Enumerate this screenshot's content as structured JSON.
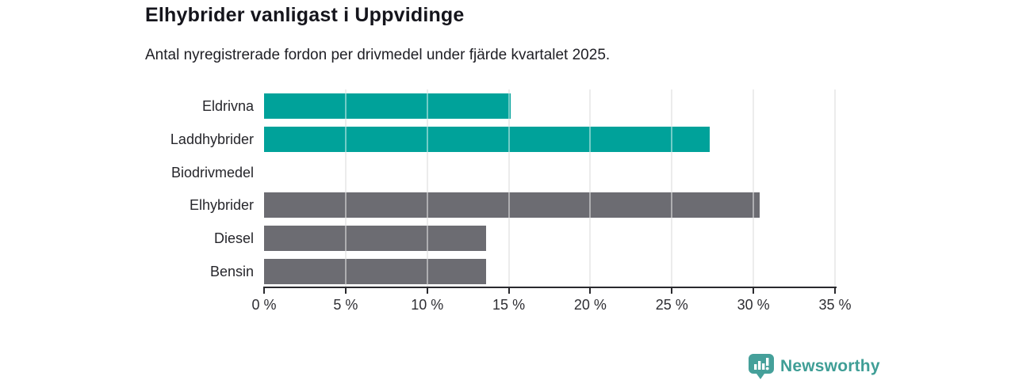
{
  "chart_data": {
    "type": "bar",
    "orientation": "horizontal",
    "title": "Elhybrider vanligast i Uppvidinge",
    "subtitle": "Antal nyregistrerade fordon per drivmedel under fjärde kvartalet 2025.",
    "categories": [
      "Eldrivna",
      "Laddhybrider",
      "Biodrivmedel",
      "Elhybrider",
      "Diesel",
      "Bensin"
    ],
    "values": [
      15.1,
      27.3,
      0,
      30.4,
      13.6,
      13.6
    ],
    "unit": "%",
    "xlim": [
      0,
      35
    ],
    "x_ticks": [
      0,
      5,
      10,
      15,
      20,
      25,
      30,
      35
    ],
    "x_tick_labels": [
      "0 %",
      "5 %",
      "10 %",
      "15 %",
      "20 %",
      "25 %",
      "30 %",
      "35 %"
    ],
    "bar_colors": [
      "#00a29a",
      "#00a29a",
      "#00a29a",
      "#6c6c72",
      "#6c6c72",
      "#6c6c72"
    ],
    "colors": {
      "highlight": "#00a29a",
      "neutral": "#6c6c72",
      "gridline": "#dcdcdc",
      "axis": "#2a2a2e"
    },
    "grid": true,
    "legend": false
  },
  "branding": {
    "wordmark": "Newsworthy",
    "color": "#3f9e96"
  }
}
